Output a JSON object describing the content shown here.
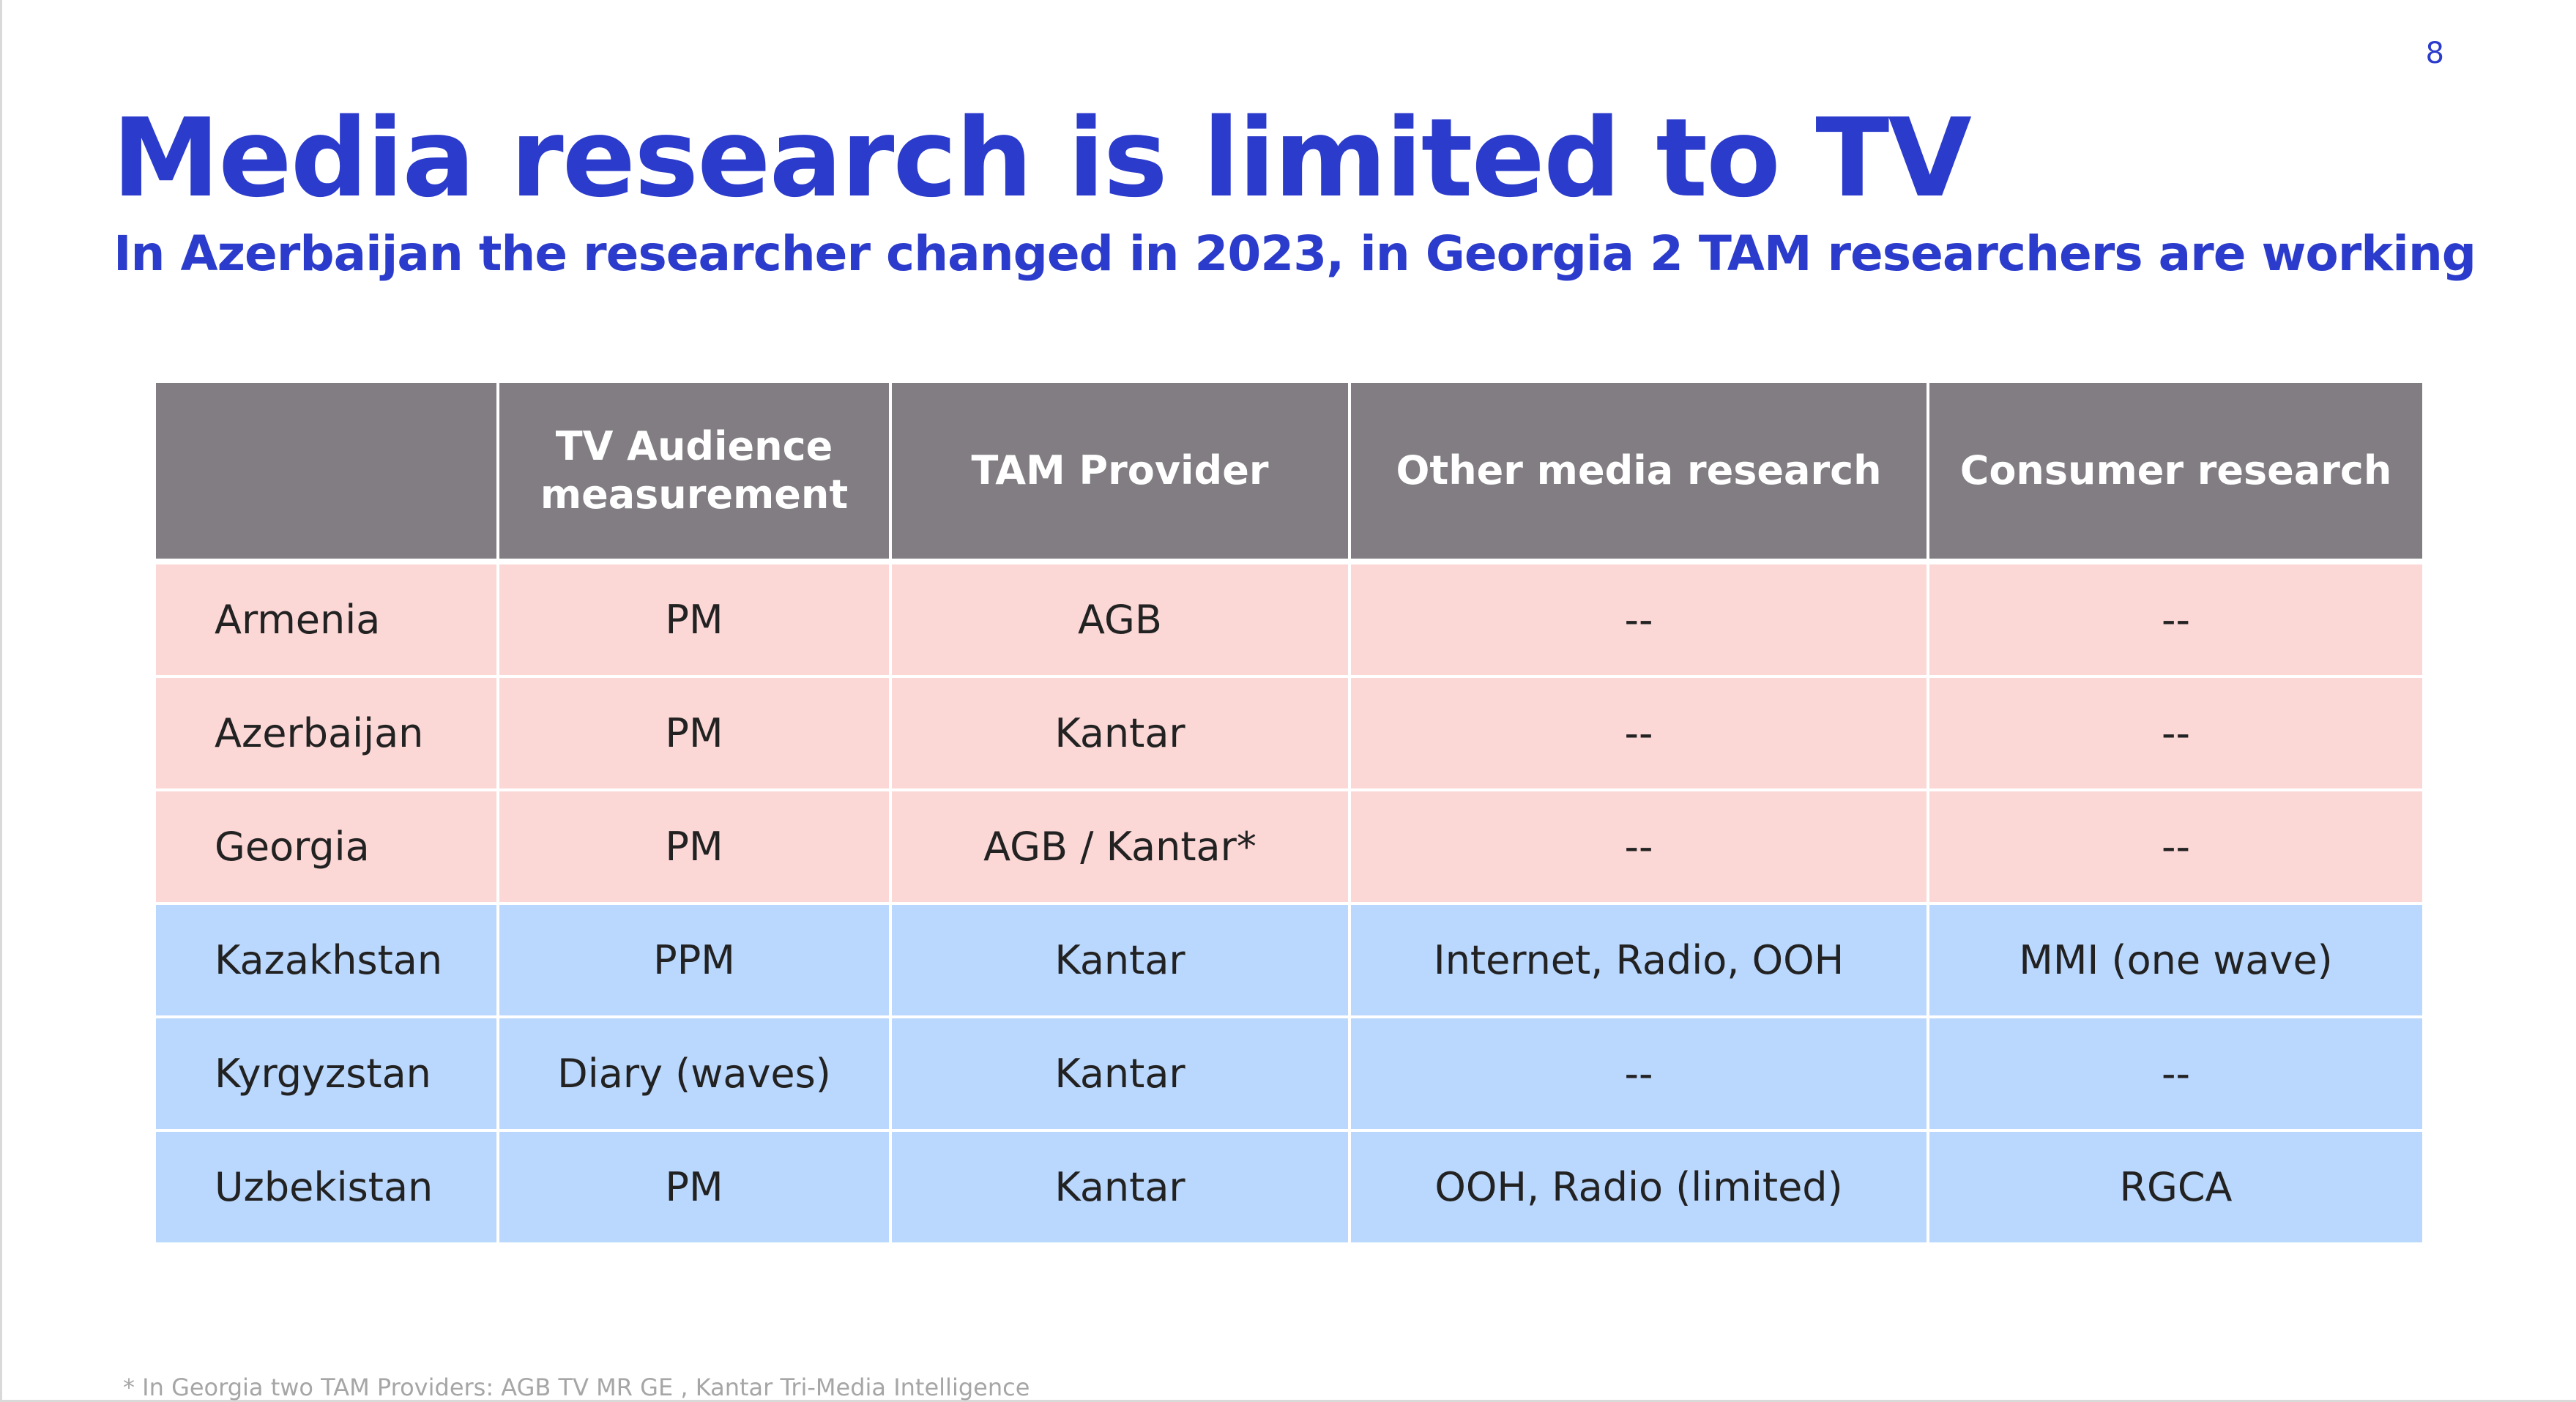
{
  "slide": {
    "page_number": "8",
    "title": "Media research is limited to TV",
    "subtitle": "In Azerbaijan the researcher changed in 2023, in Georgia 2 TAM researchers are working",
    "footnote": "* In Georgia two TAM Providers: AGB TV MR GE , Kantar Tri-Media Intelligence"
  },
  "table": {
    "headers": [
      "",
      "TV Audience measurement",
      "TAM Provider",
      "Other media research",
      "Consumer research"
    ],
    "rows": [
      [
        "Armenia",
        "PM",
        "AGB",
        "--",
        "--"
      ],
      [
        "Azerbaijan",
        "PM",
        "Kantar",
        "--",
        "--"
      ],
      [
        "Georgia",
        "PM",
        "AGB / Kantar*",
        "--",
        "--"
      ],
      [
        "Kazakhstan",
        "PPM",
        "Kantar",
        "Internet, Radio, OOH",
        "MMI (one wave)"
      ],
      [
        "Kyrgyzstan",
        "Diary (waves)",
        "Kantar",
        "--",
        "--"
      ],
      [
        "Uzbekistan",
        "PM",
        "Kantar",
        "OOH, Radio (limited)",
        "RGCA"
      ]
    ]
  },
  "colors": {
    "accent": "#2b3bcc",
    "header_bg": "#817d82",
    "row_group_a": "#fbd7d6",
    "row_group_b": "#bad7fd"
  }
}
